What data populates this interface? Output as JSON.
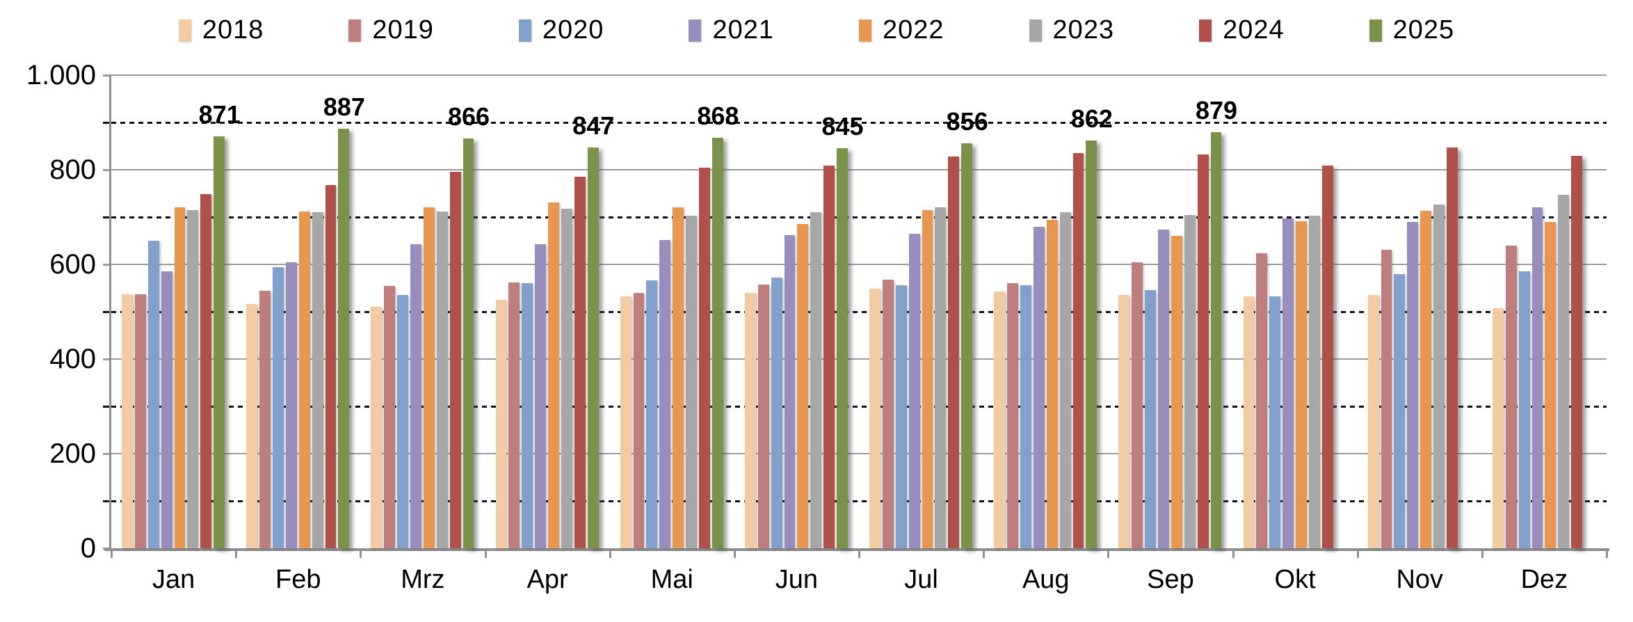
{
  "chart_data": {
    "type": "bar",
    "title": "",
    "xlabel": "",
    "ylabel": "",
    "categories": [
      "Jan",
      "Feb",
      "Mrz",
      "Apr",
      "Mai",
      "Jun",
      "Jul",
      "Aug",
      "Sep",
      "Okt",
      "Nov",
      "Dez"
    ],
    "series": [
      {
        "name": "2018",
        "color": "#F2CBA3",
        "values": [
          537,
          516,
          510,
          525,
          533,
          540,
          548,
          542,
          535,
          532,
          536,
          507
        ]
      },
      {
        "name": "2019",
        "color": "#BD7E7D",
        "values": [
          537,
          544,
          554,
          562,
          540,
          557,
          568,
          561,
          604,
          623,
          631,
          639
        ]
      },
      {
        "name": "2020",
        "color": "#81A1CB",
        "values": [
          650,
          594,
          536,
          561,
          566,
          572,
          556,
          556,
          545,
          533,
          580,
          586
        ]
      },
      {
        "name": "2021",
        "color": "#988EBD",
        "values": [
          586,
          605,
          643,
          642,
          651,
          662,
          665,
          680,
          674,
          697,
          690,
          720
        ]
      },
      {
        "name": "2022",
        "color": "#E79750",
        "values": [
          721,
          712,
          721,
          731,
          720,
          686,
          715,
          694,
          660,
          691,
          713,
          690
        ]
      },
      {
        "name": "2023",
        "color": "#A7A7A7",
        "values": [
          714,
          710,
          712,
          718,
          703,
          710,
          721,
          711,
          705,
          703,
          727,
          747
        ]
      },
      {
        "name": "2024",
        "color": "#AF504A",
        "values": [
          749,
          768,
          795,
          786,
          805,
          809,
          828,
          836,
          832,
          809,
          847,
          830
        ]
      },
      {
        "name": "2025",
        "color": "#7A924A",
        "values": [
          871,
          887,
          866,
          847,
          868,
          845,
          856,
          862,
          879,
          null,
          null,
          null
        ],
        "show_data_labels": true
      }
    ],
    "data_labels": [
      "871",
      "887",
      "866",
      "847",
      "868",
      "845",
      "856",
      "862",
      "879"
    ],
    "ylim": [
      0,
      1000
    ],
    "yticks_major": [
      0,
      200,
      400,
      600,
      800,
      1000
    ],
    "ytick_labels": [
      "0",
      "200",
      "400",
      "600",
      "800",
      "1.000"
    ],
    "yticks_minor": [
      100,
      300,
      500,
      700,
      900
    ],
    "legend_position": "top",
    "grid": "major solid gray, minor dashed black",
    "colors": {
      "grid_major": "#9c9c9c",
      "grid_minor": "#111111",
      "axis": "#8f8f8f",
      "background": "#ffffff",
      "text": "#000000"
    }
  }
}
